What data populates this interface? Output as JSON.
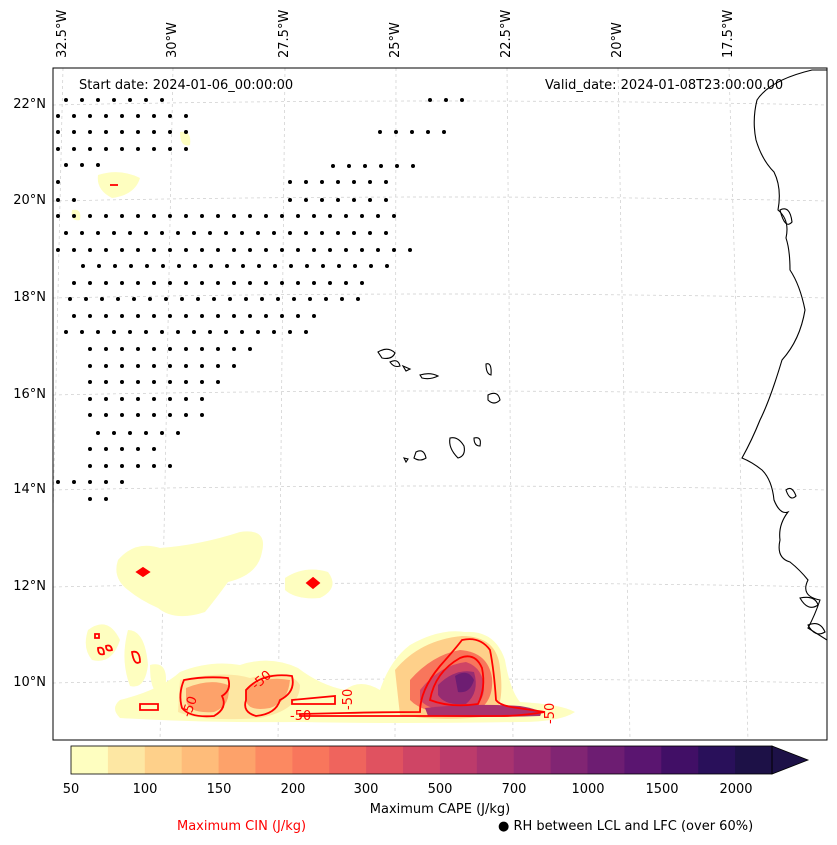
{
  "map": {
    "start_date": "Start date: 2024-01-06_00:00:00",
    "valid_date": "Valid_date: 2024-01-08T23:00:00.00",
    "lon_labels": [
      "32.5°W",
      "30°W",
      "27.5°W",
      "25°W",
      "22.5°W",
      "20°W",
      "17.5°W"
    ],
    "lat_labels": [
      "22°N",
      "20°N",
      "18°N",
      "16°N",
      "14°N",
      "12°N",
      "10°N"
    ],
    "contour_labels": [
      "-50",
      "-50",
      "-50",
      "-50",
      "-50"
    ],
    "cin_color": "#ff0000"
  },
  "colorbar": {
    "label": "Maximum CAPE (J/kg)",
    "ticks": [
      "50",
      "100",
      "150",
      "200",
      "300",
      "500",
      "700",
      "1000",
      "1500",
      "2000"
    ],
    "colors": [
      "#fefec0",
      "#fde7a3",
      "#fed08a",
      "#febc7a",
      "#fda26a",
      "#fc8961",
      "#f8765c",
      "#ef645d",
      "#e05260",
      "#cf4565",
      "#bc3b6b",
      "#a8336f",
      "#962c72",
      "#812573",
      "#6d1d72",
      "#5a1570",
      "#410f66",
      "#29105a",
      "#1d1147"
    ]
  },
  "legend": {
    "cin": "Maximum CIN (J/kg)",
    "rh": "● RH between LCL and LFC (over 60%)"
  }
}
